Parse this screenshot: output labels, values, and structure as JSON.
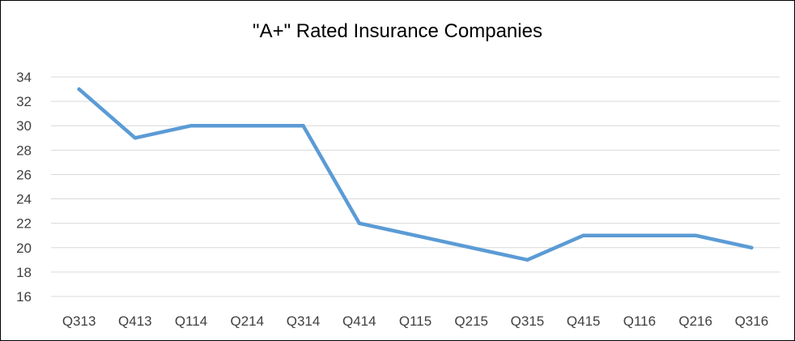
{
  "chart_data": {
    "type": "line",
    "title": "\"A+\" Rated Insurance Companies",
    "xlabel": "",
    "ylabel": "",
    "categories": [
      "Q313",
      "Q413",
      "Q114",
      "Q214",
      "Q314",
      "Q414",
      "Q115",
      "Q215",
      "Q315",
      "Q415",
      "Q116",
      "Q216",
      "Q316"
    ],
    "series": [
      {
        "values": [
          33,
          29,
          30,
          30,
          30,
          22,
          21,
          20,
          19,
          21,
          21,
          21,
          20
        ]
      }
    ],
    "ylim": [
      16,
      34
    ],
    "yticks": [
      16,
      18,
      20,
      22,
      24,
      26,
      28,
      30,
      32,
      34
    ],
    "grid": true,
    "legend": "none",
    "colors": {
      "line": "#5b9bd5",
      "grid": "#d9d9d9",
      "axis_text": "#404040"
    }
  }
}
